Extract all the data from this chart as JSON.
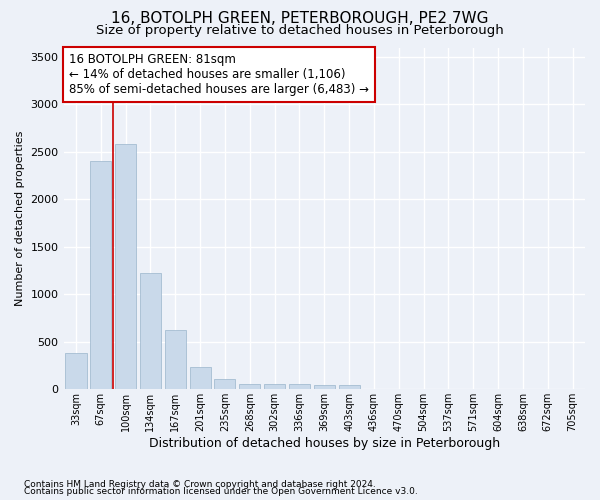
{
  "title": "16, BOTOLPH GREEN, PETERBOROUGH, PE2 7WG",
  "subtitle": "Size of property relative to detached houses in Peterborough",
  "xlabel": "Distribution of detached houses by size in Peterborough",
  "ylabel": "Number of detached properties",
  "categories": [
    "33sqm",
    "67sqm",
    "100sqm",
    "134sqm",
    "167sqm",
    "201sqm",
    "235sqm",
    "268sqm",
    "302sqm",
    "336sqm",
    "369sqm",
    "403sqm",
    "436sqm",
    "470sqm",
    "504sqm",
    "537sqm",
    "571sqm",
    "604sqm",
    "638sqm",
    "672sqm",
    "705sqm"
  ],
  "values": [
    380,
    2400,
    2580,
    1220,
    620,
    240,
    110,
    60,
    55,
    55,
    40,
    40,
    0,
    0,
    0,
    0,
    0,
    0,
    0,
    0,
    0
  ],
  "bar_color": "#c9d9ea",
  "bar_edge_color": "#9ab5cc",
  "ylim": [
    0,
    3600
  ],
  "yticks": [
    0,
    500,
    1000,
    1500,
    2000,
    2500,
    3000,
    3500
  ],
  "annotation_title": "16 BOTOLPH GREEN: 81sqm",
  "annotation_line1": "← 14% of detached houses are smaller (1,106)",
  "annotation_line2": "85% of semi-detached houses are larger (6,483) →",
  "footnote1": "Contains HM Land Registry data © Crown copyright and database right 2024.",
  "footnote2": "Contains public sector information licensed under the Open Government Licence v3.0.",
  "bg_color": "#edf1f8",
  "plot_bg_color": "#edf1f8",
  "grid_color": "white",
  "title_fontsize": 11,
  "subtitle_fontsize": 9.5,
  "annotation_fontsize": 8.5,
  "footnote_fontsize": 6.5,
  "ylabel_fontsize": 8,
  "xlabel_fontsize": 9,
  "red_line_color": "#cc0000",
  "red_line_x": 1.5
}
